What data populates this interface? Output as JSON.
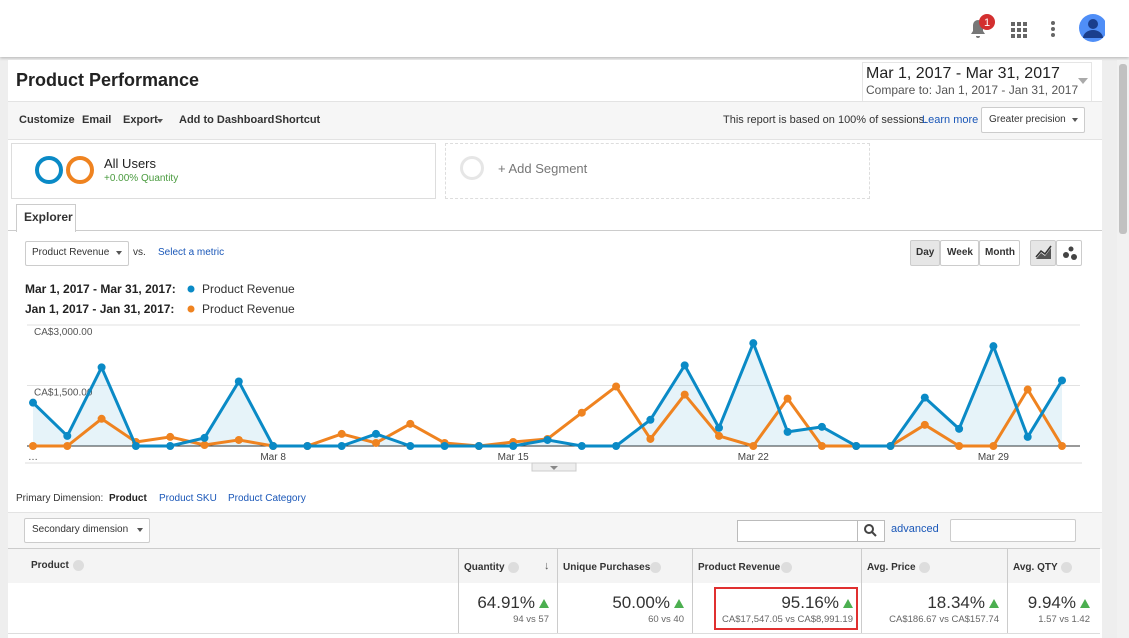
{
  "header": {
    "notification_count": "1"
  },
  "report": {
    "title": "Product Performance",
    "date_range": "Mar 1, 2017 - Mar 31, 2017",
    "compare": "Compare to: Jan 1, 2017 - Jan 31, 2017"
  },
  "toolbar": {
    "items": [
      "Customize",
      "Email",
      "Export",
      "Add to Dashboard",
      "Shortcut"
    ],
    "sessions_note": "This report is based on 100% of sessions.",
    "learn_more": "Learn more",
    "precision": "Greater precision"
  },
  "segments": {
    "name": "All Users",
    "detail": "+0.00% Quantity",
    "add": "+ Add Segment"
  },
  "tab": "Explorer",
  "controls": {
    "metric": "Product Revenue",
    "vs": "vs.",
    "select_metric": "Select a metric",
    "granularity": [
      "Day",
      "Week",
      "Month"
    ]
  },
  "chart_data": {
    "type": "line",
    "categories": [
      "…",
      null,
      null,
      null,
      null,
      null,
      null,
      "Mar 8",
      null,
      null,
      null,
      null,
      null,
      null,
      "Mar 15",
      null,
      null,
      null,
      null,
      null,
      null,
      "Mar 22",
      null,
      null,
      null,
      null,
      null,
      null,
      "Mar 29",
      null,
      null
    ],
    "series": [
      {
        "name": "Product Revenue",
        "period": "Mar 1, 2017 - Mar 31, 2017:",
        "color": "#0a8ac6",
        "area": true,
        "values": [
          1075,
          250,
          1950,
          0,
          0,
          200,
          1600,
          0,
          0,
          0,
          300,
          0,
          0,
          0,
          0,
          150,
          0,
          0,
          650,
          2000,
          450,
          2550,
          350,
          475,
          0,
          0,
          1200,
          425,
          2475,
          225,
          1625
        ]
      },
      {
        "name": "Product Revenue",
        "period": "Jan 1, 2017 - Jan 31, 2017:",
        "color": "#ef8320",
        "area": false,
        "values": [
          0,
          0,
          675,
          100,
          225,
          25,
          150,
          0,
          0,
          300,
          75,
          550,
          75,
          0,
          100,
          175,
          825,
          1475,
          175,
          1275,
          250,
          0,
          1175,
          0,
          0,
          0,
          525,
          0,
          0,
          1400,
          0
        ]
      }
    ],
    "ylim": [
      0,
      3000
    ],
    "yticks": [
      {
        "value": 1500,
        "label": "CA$1,500.00"
      },
      {
        "value": 3000,
        "label": "CA$3,000.00"
      }
    ],
    "grid": true
  },
  "dimensions": {
    "label": "Primary Dimension:",
    "options": [
      "Product",
      "Product SKU",
      "Product Category"
    ],
    "secondary": "Secondary dimension",
    "advanced": "advanced"
  },
  "table": {
    "columns": [
      "Product",
      "Quantity",
      "Unique Purchases",
      "Product Revenue",
      "Avg. Price",
      "Avg. QTY"
    ],
    "totals": [
      {
        "value": "64.91%",
        "detail": "94 vs 57"
      },
      {
        "value": "50.00%",
        "detail": "60 vs 40"
      },
      {
        "value": "95.16%",
        "detail": "CA$17,547.05 vs CA$8,991.19"
      },
      {
        "value": "18.34%",
        "detail": "CA$186.67 vs CA$157.74"
      },
      {
        "value": "9.94%",
        "detail": "1.57 vs 1.42"
      }
    ]
  }
}
